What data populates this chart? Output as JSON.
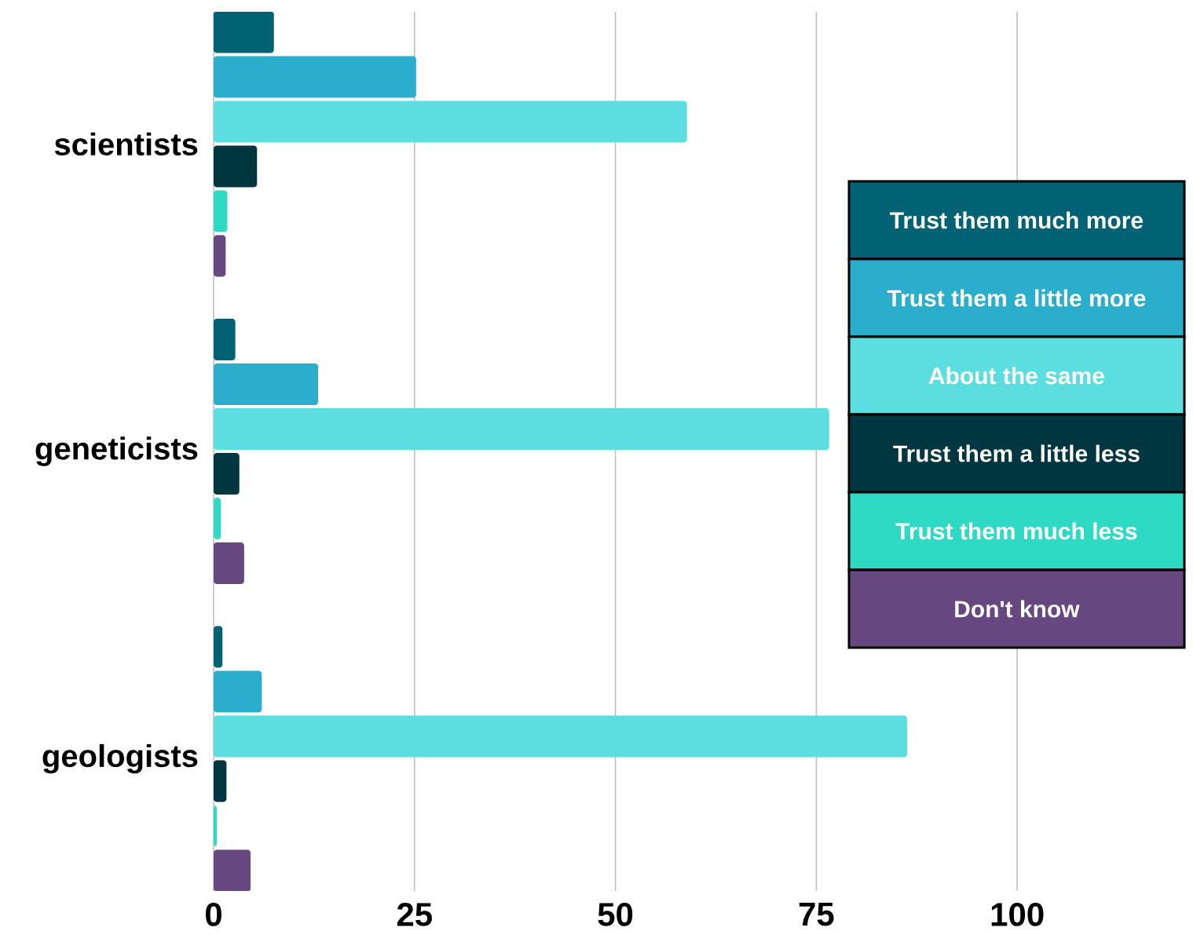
{
  "chart_data": {
    "type": "bar",
    "orientation": "horizontal",
    "categories": [
      "scientists",
      "geneticists",
      "geologists"
    ],
    "series": [
      {
        "name": "Trust them much more",
        "color": "#006272",
        "values": [
          7.5,
          2.7,
          1.1
        ]
      },
      {
        "name": "Trust them a little more",
        "color": "#2aaecc",
        "values": [
          25.2,
          13.0,
          6.0
        ]
      },
      {
        "name": "About the same",
        "color": "#5cdee0",
        "values": [
          58.9,
          76.6,
          86.3
        ]
      },
      {
        "name": "Trust them a little less",
        "color": "#003640",
        "values": [
          5.4,
          3.2,
          1.6
        ]
      },
      {
        "name": "Trust them much less",
        "color": "#2fdac4",
        "values": [
          1.7,
          0.9,
          0.4
        ]
      },
      {
        "name": "Don't know",
        "color": "#674780",
        "values": [
          1.5,
          3.8,
          4.6
        ]
      }
    ],
    "xlim": [
      0,
      121
    ],
    "xticks": [
      0,
      25,
      50,
      75,
      100
    ],
    "grid": "x",
    "legend": "right"
  }
}
